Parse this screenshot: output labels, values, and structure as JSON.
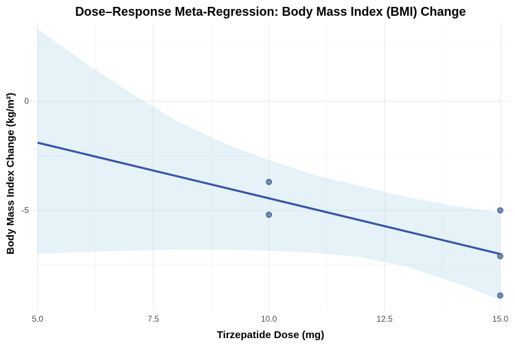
{
  "chart_data": {
    "type": "scatter",
    "title": "Dose–Response Meta-Regression: Body Mass Index (BMI) Change",
    "xlabel": "Tirzepatide Dose (mg)",
    "ylabel": "Body Mass Index Change (kg/m²)",
    "xlim": [
      4.9,
      15.2
    ],
    "ylim": [
      -9.6,
      3.6
    ],
    "x_ticks": [
      5.0,
      7.5,
      10.0,
      12.5,
      15.0
    ],
    "x_tick_labels": [
      "5.0",
      "7.5",
      "10.0",
      "12.5",
      "15.0"
    ],
    "y_ticks": [
      0,
      -5
    ],
    "y_tick_labels": [
      "0",
      "-5"
    ],
    "grid": true,
    "points": [
      {
        "x": 10,
        "y": -3.7
      },
      {
        "x": 10,
        "y": -5.2
      },
      {
        "x": 15,
        "y": -5.0
      },
      {
        "x": 15,
        "y": -7.1
      },
      {
        "x": 15,
        "y": -8.9
      }
    ],
    "regression_line": {
      "x": [
        5,
        15
      ],
      "y": [
        -1.9,
        -7.0
      ]
    },
    "confidence_band": {
      "x": [
        5,
        6,
        7,
        8,
        9,
        10,
        11,
        12,
        13,
        14,
        15
      ],
      "upper": [
        3.3,
        1.8,
        0.4,
        -0.9,
        -1.9,
        -2.7,
        -3.4,
        -3.9,
        -4.4,
        -4.8,
        -5.1
      ],
      "lower": [
        -7.0,
        -6.9,
        -6.85,
        -6.8,
        -6.8,
        -6.85,
        -6.95,
        -7.15,
        -7.6,
        -8.3,
        -9.1
      ]
    },
    "colors": {
      "line": "#3a53a4",
      "points": "#4a74a8",
      "band": "#add8e6"
    }
  }
}
